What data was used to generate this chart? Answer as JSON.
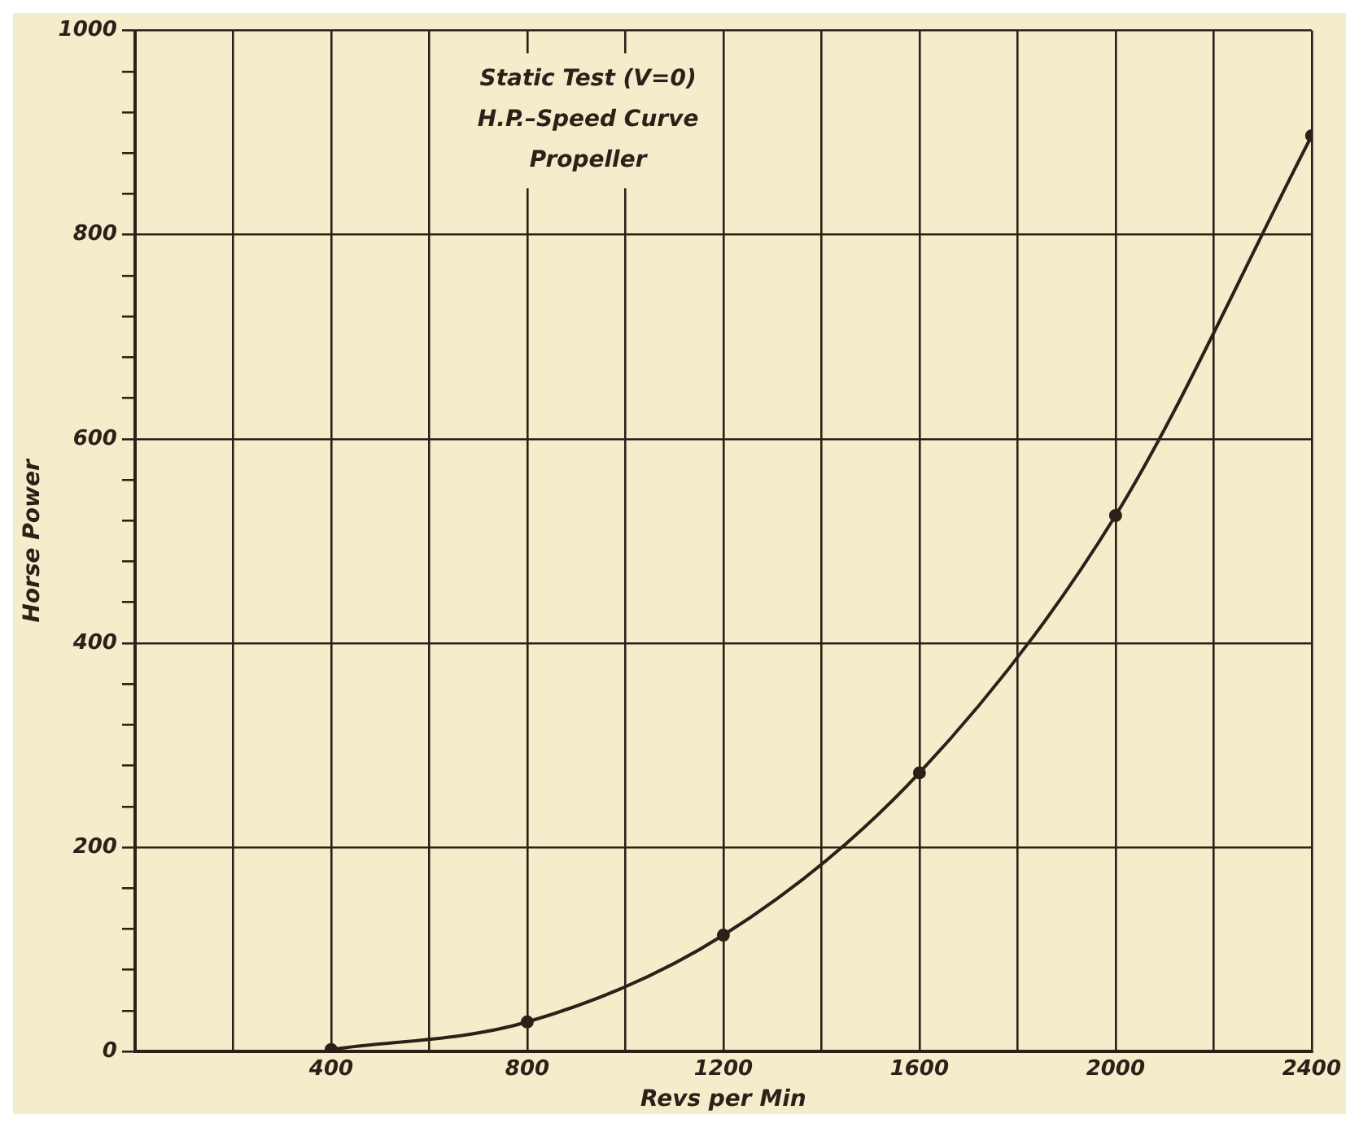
{
  "chart_data": {
    "type": "line",
    "title": "Static Test (V=0)",
    "subtitle": "H.P.–Speed Curve",
    "annotations": [
      "Propeller"
    ],
    "xlabel": "Revs per Min",
    "ylabel": "Horse Power",
    "x": [
      400,
      800,
      1200,
      1600,
      2000,
      2400
    ],
    "series": [
      {
        "color": "#2b2118",
        "values": [
          2,
          29,
          114,
          273,
          525,
          897
        ]
      }
    ],
    "xlim": [
      0,
      2400
    ],
    "ylim": [
      0,
      1000
    ],
    "xticks": [
      {
        "value": 0,
        "label": null
      },
      {
        "value": 200,
        "label": null
      },
      400,
      {
        "value": 600,
        "label": null
      },
      800,
      {
        "value": 1000,
        "label": null
      },
      1200,
      {
        "value": 1400,
        "label": null
      },
      1600,
      {
        "value": 1800,
        "label": null
      },
      2000,
      {
        "value": 2200,
        "label": null
      },
      2400
    ],
    "yticks": [
      0,
      {
        "value": 40,
        "label": null
      },
      {
        "value": 80,
        "label": null
      },
      {
        "value": 120,
        "label": null
      },
      {
        "value": 160,
        "label": null
      },
      200,
      {
        "value": 240,
        "label": null
      },
      {
        "value": 280,
        "label": null
      },
      {
        "value": 320,
        "label": null
      },
      {
        "value": 360,
        "label": null
      },
      400,
      {
        "value": 440,
        "label": null
      },
      {
        "value": 480,
        "label": null
      },
      {
        "value": 520,
        "label": null
      },
      {
        "value": 560,
        "label": null
      },
      600,
      {
        "value": 640,
        "label": null
      },
      {
        "value": 680,
        "label": null
      },
      {
        "value": 720,
        "label": null
      },
      {
        "value": 760,
        "label": null
      },
      800,
      {
        "value": 840,
        "label": null
      },
      {
        "value": 880,
        "label": null
      },
      {
        "value": 920,
        "label": null
      },
      {
        "value": 960,
        "label": null
      },
      1000
    ],
    "grid": true,
    "legend": false,
    "marker": "circle",
    "line_style": "solid"
  }
}
